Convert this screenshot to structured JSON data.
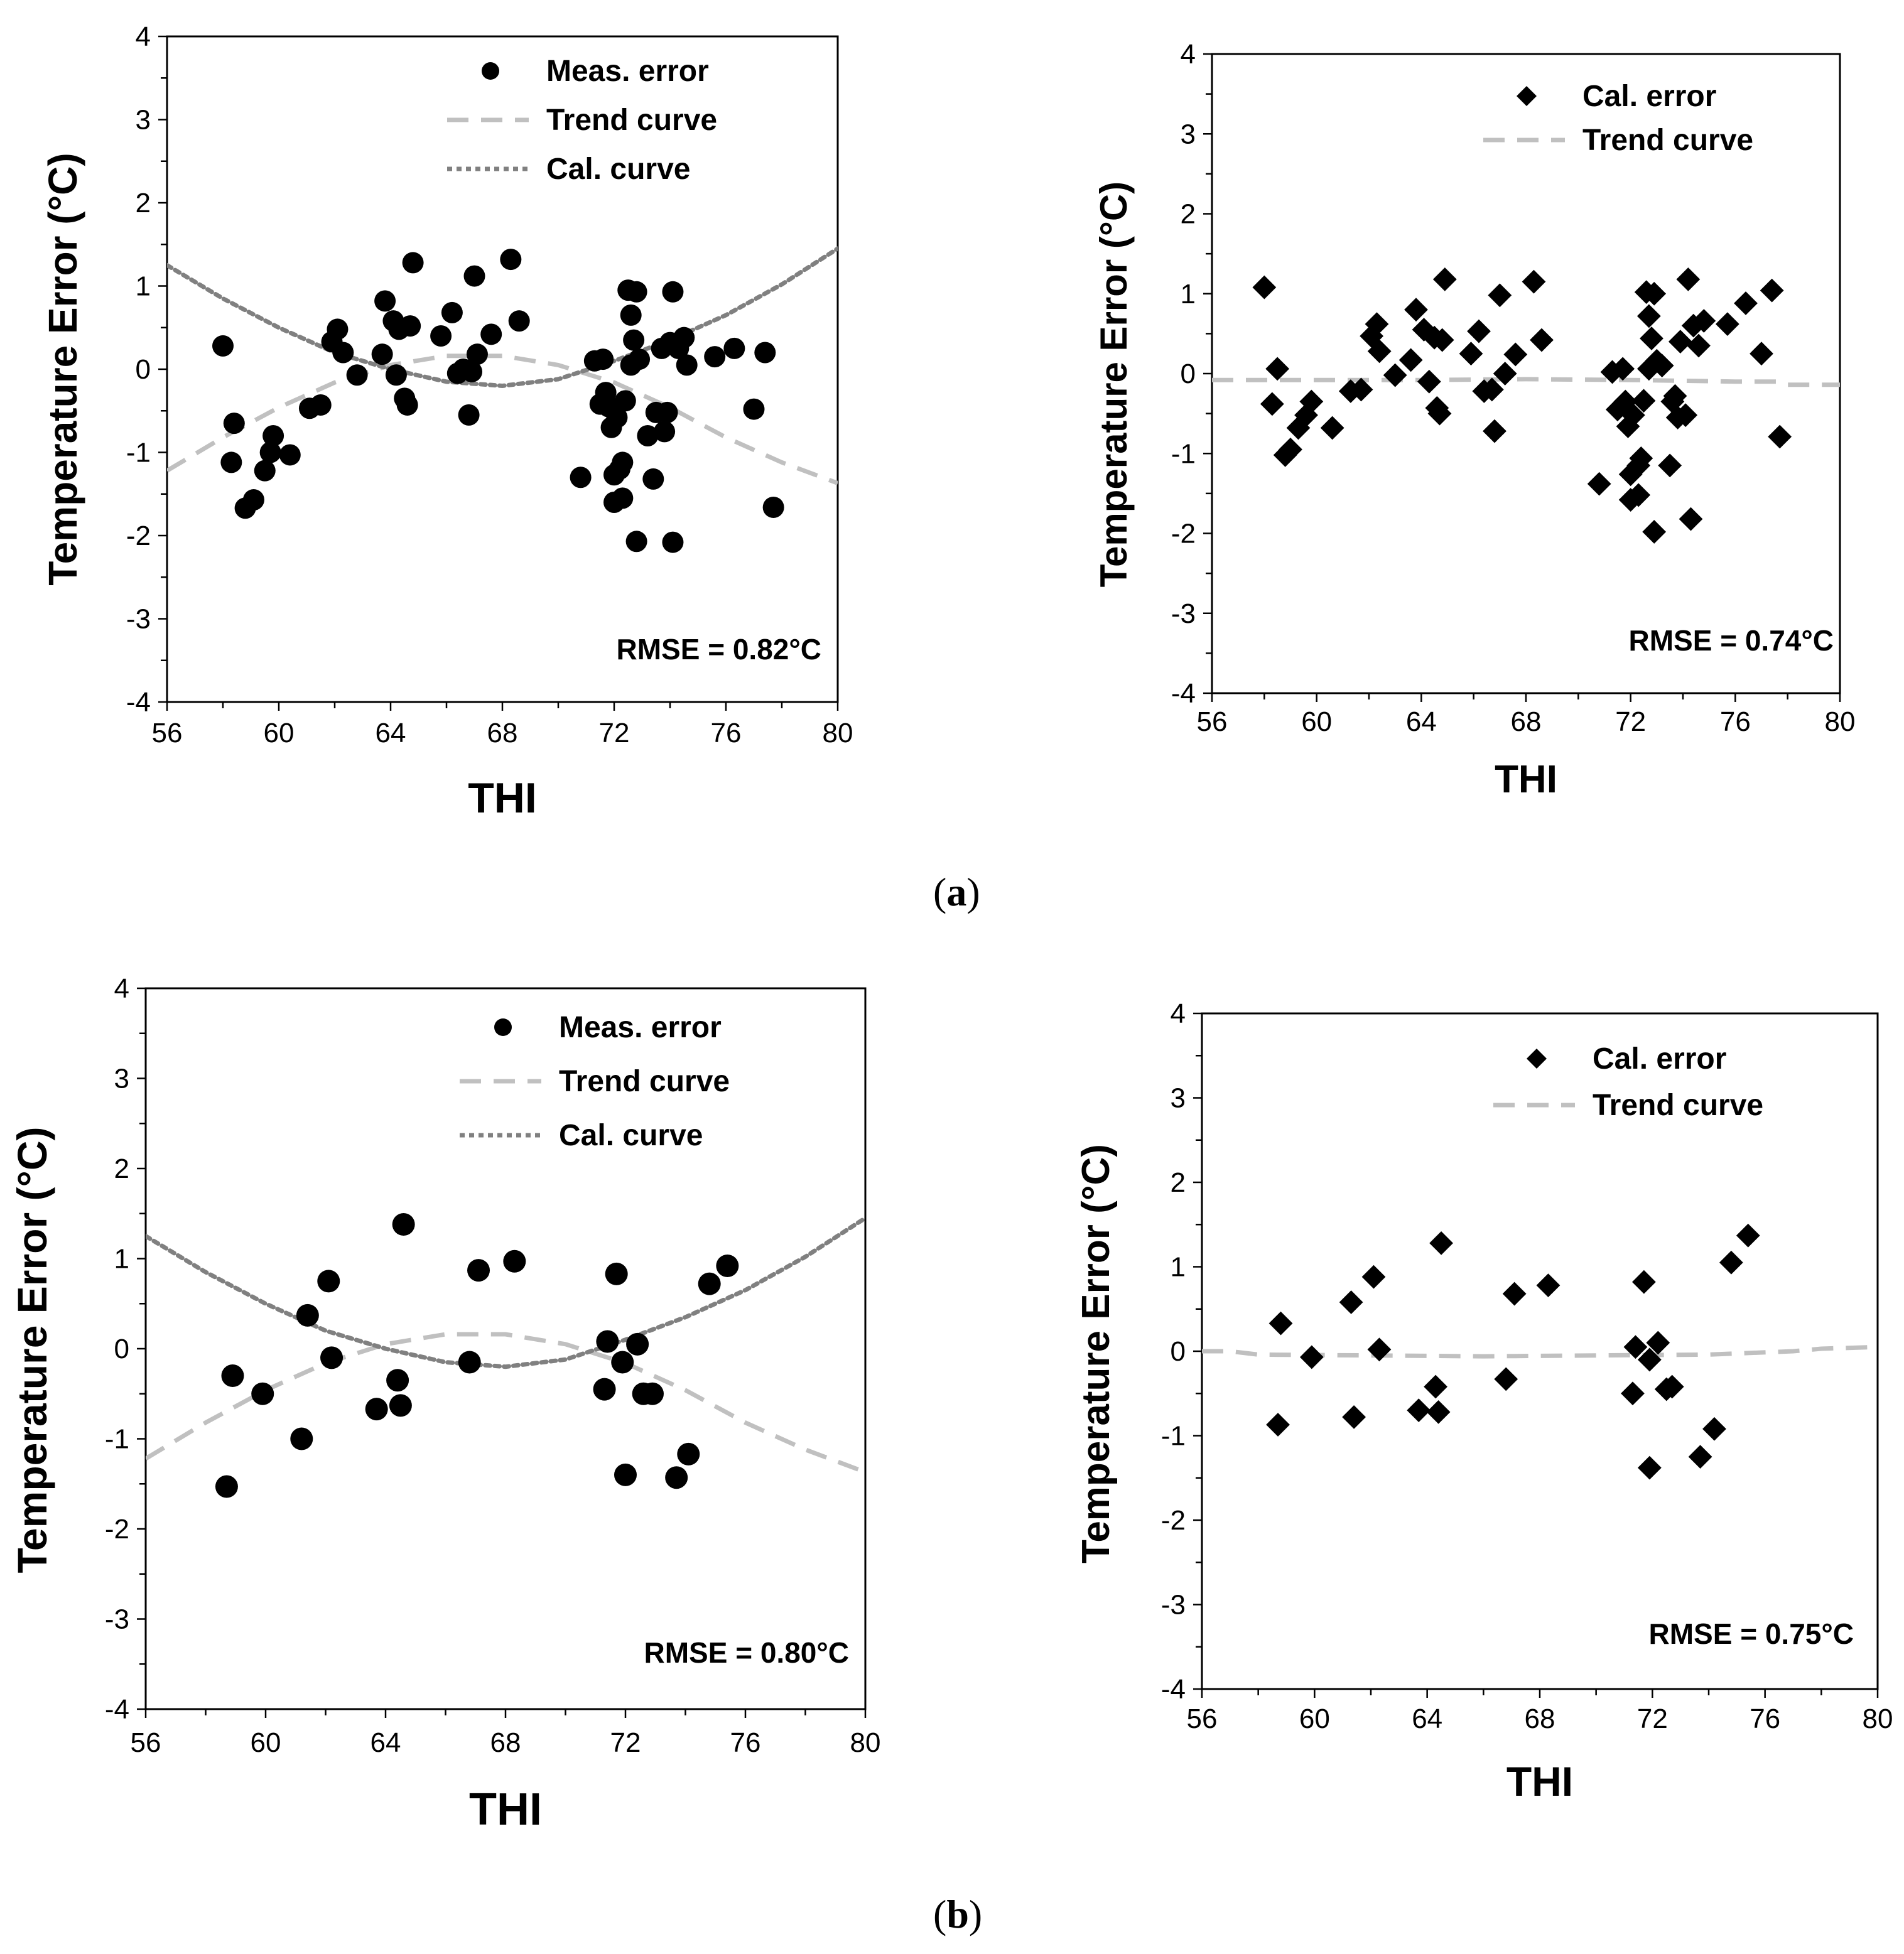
{
  "panel_labels": {
    "a": "a",
    "b": "b"
  },
  "colors": {
    "marker": "#000000",
    "trend": "#c0c0c0",
    "cal": "#808080",
    "axis": "#000000"
  },
  "chart_data": [
    {
      "id": "a-left",
      "type": "scatter",
      "marker": "circle",
      "xlabel": "THI",
      "ylabel": "Temperature Error  (°C)",
      "xlim": [
        56,
        80
      ],
      "ylim": [
        -4,
        4
      ],
      "xticks": [
        56,
        60,
        64,
        68,
        72,
        76,
        80
      ],
      "yticks": [
        -4,
        -3,
        -2,
        -1,
        0,
        1,
        2,
        3,
        4
      ],
      "rmse_label": "RMSE = 0.82°C",
      "legend": {
        "position": "top-right",
        "scatter": "Meas. error",
        "trend": "Trend curve",
        "cal": "Cal. curve"
      },
      "points": [
        [
          58,
          0.28
        ],
        [
          58.3,
          -1.12
        ],
        [
          58.4,
          -0.65
        ],
        [
          58.8,
          -1.67
        ],
        [
          59.1,
          -1.57
        ],
        [
          59.5,
          -1.22
        ],
        [
          59.7,
          -1.0
        ],
        [
          59.8,
          -0.8
        ],
        [
          60.4,
          -1.03
        ],
        [
          61.1,
          -0.47
        ],
        [
          61.5,
          -0.43
        ],
        [
          61.9,
          0.33
        ],
        [
          62.1,
          0.48
        ],
        [
          62.3,
          0.2
        ],
        [
          62.8,
          -0.07
        ],
        [
          63.7,
          0.18
        ],
        [
          63.8,
          0.82
        ],
        [
          64.1,
          0.58
        ],
        [
          64.2,
          -0.07
        ],
        [
          64.3,
          0.48
        ],
        [
          64.5,
          -0.35
        ],
        [
          64.6,
          -0.43
        ],
        [
          64.7,
          0.52
        ],
        [
          64.8,
          1.28
        ],
        [
          65.8,
          0.4
        ],
        [
          66.2,
          0.68
        ],
        [
          66.4,
          -0.05
        ],
        [
          66.6,
          0.0
        ],
        [
          66.8,
          -0.55
        ],
        [
          66.9,
          -0.03
        ],
        [
          67.0,
          1.12
        ],
        [
          67.1,
          0.18
        ],
        [
          67.6,
          0.42
        ],
        [
          68.3,
          1.32
        ],
        [
          68.6,
          0.58
        ],
        [
          70.8,
          -1.3
        ],
        [
          71.3,
          0.1
        ],
        [
          71.5,
          -0.42
        ],
        [
          71.6,
          0.12
        ],
        [
          71.7,
          -0.28
        ],
        [
          71.8,
          -0.45
        ],
        [
          71.9,
          -0.7
        ],
        [
          72.0,
          -1.6
        ],
        [
          72.0,
          -1.27
        ],
        [
          72.1,
          -0.58
        ],
        [
          72.2,
          -1.2
        ],
        [
          72.3,
          -1.55
        ],
        [
          72.3,
          -1.12
        ],
        [
          72.4,
          -0.38
        ],
        [
          72.5,
          0.95
        ],
        [
          72.6,
          0.65
        ],
        [
          72.6,
          0.05
        ],
        [
          72.7,
          0.35
        ],
        [
          72.8,
          0.93
        ],
        [
          72.8,
          -2.07
        ],
        [
          72.9,
          0.12
        ],
        [
          73.2,
          -0.8
        ],
        [
          73.4,
          -1.32
        ],
        [
          73.5,
          -0.52
        ],
        [
          73.7,
          0.25
        ],
        [
          73.8,
          -0.75
        ],
        [
          73.9,
          -0.52
        ],
        [
          74.0,
          0.32
        ],
        [
          74.1,
          0.93
        ],
        [
          74.1,
          -2.08
        ],
        [
          74.3,
          0.25
        ],
        [
          74.5,
          0.38
        ],
        [
          74.6,
          0.05
        ],
        [
          75.6,
          0.15
        ],
        [
          76.3,
          0.25
        ],
        [
          77.0,
          -0.48
        ],
        [
          77.4,
          0.2
        ],
        [
          77.7,
          -1.66
        ]
      ],
      "trend": [
        [
          56,
          -1.22
        ],
        [
          58,
          -0.82
        ],
        [
          60,
          -0.46
        ],
        [
          62,
          -0.16
        ],
        [
          64,
          0.05
        ],
        [
          66,
          0.16
        ],
        [
          68,
          0.16
        ],
        [
          70,
          0.05
        ],
        [
          72,
          -0.16
        ],
        [
          74,
          -0.46
        ],
        [
          76,
          -0.82
        ],
        [
          78,
          -1.12
        ],
        [
          80,
          -1.37
        ]
      ],
      "cal": [
        [
          56,
          1.25
        ],
        [
          58,
          0.85
        ],
        [
          60,
          0.5
        ],
        [
          62,
          0.2
        ],
        [
          64,
          0.0
        ],
        [
          66,
          -0.15
        ],
        [
          68,
          -0.2
        ],
        [
          70,
          -0.12
        ],
        [
          72,
          0.1
        ],
        [
          74,
          0.35
        ],
        [
          76,
          0.65
        ],
        [
          78,
          1.02
        ],
        [
          80,
          1.45
        ]
      ]
    },
    {
      "id": "a-right",
      "type": "scatter",
      "marker": "diamond",
      "xlabel": "THI",
      "ylabel": "Temperature Error  (°C)",
      "xlim": [
        56,
        80
      ],
      "ylim": [
        -4,
        4
      ],
      "xticks": [
        56,
        60,
        64,
        68,
        72,
        76,
        80
      ],
      "yticks": [
        -4,
        -3,
        -2,
        -1,
        0,
        1,
        2,
        3,
        4
      ],
      "rmse_label": "RMSE = 0.74°C",
      "legend": {
        "position": "top-right",
        "scatter": "Cal. error",
        "trend": "Trend curve"
      },
      "points": [
        [
          58,
          1.08
        ],
        [
          58.3,
          -0.38
        ],
        [
          58.5,
          0.06
        ],
        [
          58.8,
          -1.02
        ],
        [
          59.0,
          -0.95
        ],
        [
          59.3,
          -0.68
        ],
        [
          59.6,
          -0.52
        ],
        [
          59.8,
          -0.35
        ],
        [
          60.6,
          -0.68
        ],
        [
          61.3,
          -0.22
        ],
        [
          61.7,
          -0.2
        ],
        [
          62.1,
          0.47
        ],
        [
          62.3,
          0.62
        ],
        [
          62.4,
          0.28
        ],
        [
          63.0,
          -0.02
        ],
        [
          63.6,
          0.17
        ],
        [
          63.8,
          0.8
        ],
        [
          64.1,
          0.55
        ],
        [
          64.3,
          -0.1
        ],
        [
          64.5,
          0.45
        ],
        [
          64.6,
          -0.43
        ],
        [
          64.7,
          -0.5
        ],
        [
          64.8,
          0.42
        ],
        [
          64.9,
          1.18
        ],
        [
          65.9,
          0.25
        ],
        [
          66.2,
          0.53
        ],
        [
          66.4,
          -0.22
        ],
        [
          66.7,
          -0.2
        ],
        [
          66.8,
          -0.72
        ],
        [
          67.0,
          0.98
        ],
        [
          67.2,
          0.0
        ],
        [
          67.6,
          0.24
        ],
        [
          68.3,
          1.15
        ],
        [
          68.6,
          0.42
        ],
        [
          70.8,
          -1.38
        ],
        [
          71.3,
          0.02
        ],
        [
          71.5,
          -0.45
        ],
        [
          71.7,
          0.06
        ],
        [
          71.8,
          -0.35
        ],
        [
          71.9,
          -0.66
        ],
        [
          72.0,
          -1.58
        ],
        [
          72.0,
          -1.26
        ],
        [
          72.1,
          -0.52
        ],
        [
          72.3,
          -1.15
        ],
        [
          72.3,
          -1.52
        ],
        [
          72.4,
          -1.06
        ],
        [
          72.5,
          -0.34
        ],
        [
          72.6,
          1.02
        ],
        [
          72.7,
          0.72
        ],
        [
          72.7,
          0.06
        ],
        [
          72.8,
          0.44
        ],
        [
          72.9,
          1.0
        ],
        [
          72.9,
          -1.98
        ],
        [
          73.0,
          0.16
        ],
        [
          73.2,
          0.1
        ],
        [
          73.5,
          -1.15
        ],
        [
          73.6,
          -0.35
        ],
        [
          73.7,
          -0.28
        ],
        [
          73.8,
          -0.55
        ],
        [
          73.9,
          0.4
        ],
        [
          74.1,
          -0.52
        ],
        [
          74.2,
          1.18
        ],
        [
          74.3,
          -1.82
        ],
        [
          74.4,
          0.6
        ],
        [
          74.6,
          0.35
        ],
        [
          74.8,
          0.66
        ],
        [
          75.7,
          0.62
        ],
        [
          76.4,
          0.88
        ],
        [
          77.0,
          0.25
        ],
        [
          77.4,
          1.04
        ],
        [
          77.7,
          -0.79
        ]
      ],
      "trend": [
        [
          56,
          -0.08
        ],
        [
          60,
          -0.08
        ],
        [
          64,
          -0.08
        ],
        [
          68,
          -0.07
        ],
        [
          72,
          -0.08
        ],
        [
          76,
          -0.1
        ],
        [
          77.6,
          -0.1
        ],
        [
          78,
          -0.14
        ],
        [
          80,
          -0.14
        ]
      ]
    },
    {
      "id": "b-left",
      "type": "scatter",
      "marker": "circle",
      "xlabel": "THI",
      "ylabel": "Temperature Error  (°C)",
      "xlim": [
        56,
        80
      ],
      "ylim": [
        -4,
        4
      ],
      "xticks": [
        56,
        60,
        64,
        68,
        72,
        76,
        80
      ],
      "yticks": [
        -4,
        -3,
        -2,
        -1,
        0,
        1,
        2,
        3,
        4
      ],
      "rmse_label": "RMSE = 0.80°C",
      "legend": {
        "position": "top-right",
        "scatter": "Meas. error",
        "trend": "Trend curve",
        "cal": "Cal. curve"
      },
      "points": [
        [
          58.7,
          -1.53
        ],
        [
          58.9,
          -0.3
        ],
        [
          59.9,
          -0.5
        ],
        [
          61.2,
          -1.0
        ],
        [
          61.4,
          0.37
        ],
        [
          62.1,
          0.75
        ],
        [
          62.2,
          -0.1
        ],
        [
          63.7,
          -0.67
        ],
        [
          64.4,
          -0.35
        ],
        [
          64.5,
          -0.63
        ],
        [
          64.6,
          1.38
        ],
        [
          66.8,
          -0.15
        ],
        [
          67.1,
          0.87
        ],
        [
          68.3,
          0.97
        ],
        [
          71.3,
          -0.45
        ],
        [
          71.4,
          0.08
        ],
        [
          71.7,
          0.83
        ],
        [
          71.9,
          -0.15
        ],
        [
          72.0,
          -1.4
        ],
        [
          72.4,
          0.05
        ],
        [
          72.6,
          -0.5
        ],
        [
          72.9,
          -0.5
        ],
        [
          73.7,
          -1.43
        ],
        [
          74.1,
          -1.17
        ],
        [
          74.8,
          0.72
        ],
        [
          75.4,
          0.92
        ]
      ],
      "trend": [
        [
          56,
          -1.22
        ],
        [
          58,
          -0.82
        ],
        [
          60,
          -0.46
        ],
        [
          62,
          -0.16
        ],
        [
          64,
          0.05
        ],
        [
          66,
          0.16
        ],
        [
          68,
          0.16
        ],
        [
          70,
          0.05
        ],
        [
          72,
          -0.16
        ],
        [
          74,
          -0.46
        ],
        [
          76,
          -0.82
        ],
        [
          78,
          -1.12
        ],
        [
          80,
          -1.37
        ]
      ],
      "cal": [
        [
          56,
          1.25
        ],
        [
          58,
          0.85
        ],
        [
          60,
          0.5
        ],
        [
          62,
          0.2
        ],
        [
          64,
          0.0
        ],
        [
          66,
          -0.15
        ],
        [
          68,
          -0.2
        ],
        [
          70,
          -0.12
        ],
        [
          72,
          0.1
        ],
        [
          74,
          0.35
        ],
        [
          76,
          0.65
        ],
        [
          78,
          1.02
        ],
        [
          80,
          1.45
        ]
      ]
    },
    {
      "id": "b-right",
      "type": "scatter",
      "marker": "diamond",
      "xlabel": "THI",
      "ylabel": "Temperature Error  (°C)",
      "xlim": [
        56,
        80
      ],
      "ylim": [
        -4,
        4
      ],
      "xticks": [
        56,
        60,
        64,
        68,
        72,
        76,
        80
      ],
      "yticks": [
        -4,
        -3,
        -2,
        -1,
        0,
        1,
        2,
        3,
        4
      ],
      "rmse_label": "RMSE = 0.75°C",
      "legend": {
        "position": "top-right",
        "scatter": "Cal. error",
        "trend": "Trend curve"
      },
      "points": [
        [
          58.7,
          -0.87
        ],
        [
          58.8,
          0.33
        ],
        [
          59.9,
          -0.07
        ],
        [
          61.3,
          0.58
        ],
        [
          61.4,
          -0.78
        ],
        [
          62.1,
          0.88
        ],
        [
          62.3,
          0.02
        ],
        [
          63.7,
          -0.7
        ],
        [
          64.3,
          -0.42
        ],
        [
          64.4,
          -0.72
        ],
        [
          64.5,
          1.28
        ],
        [
          66.8,
          -0.33
        ],
        [
          67.1,
          0.68
        ],
        [
          68.3,
          0.78
        ],
        [
          71.3,
          -0.5
        ],
        [
          71.4,
          0.05
        ],
        [
          71.7,
          0.82
        ],
        [
          71.9,
          -0.1
        ],
        [
          71.9,
          -1.38
        ],
        [
          72.2,
          0.1
        ],
        [
          72.5,
          -0.45
        ],
        [
          72.7,
          -0.42
        ],
        [
          73.7,
          -1.25
        ],
        [
          74.2,
          -0.92
        ],
        [
          74.8,
          1.05
        ],
        [
          75.4,
          1.37
        ]
      ],
      "trend": [
        [
          56,
          0.0
        ],
        [
          57,
          0.0
        ],
        [
          58,
          -0.04
        ],
        [
          62,
          -0.05
        ],
        [
          66,
          -0.06
        ],
        [
          70,
          -0.05
        ],
        [
          74,
          -0.04
        ],
        [
          77,
          0.0
        ],
        [
          78,
          0.03
        ],
        [
          80,
          0.05
        ]
      ]
    }
  ]
}
